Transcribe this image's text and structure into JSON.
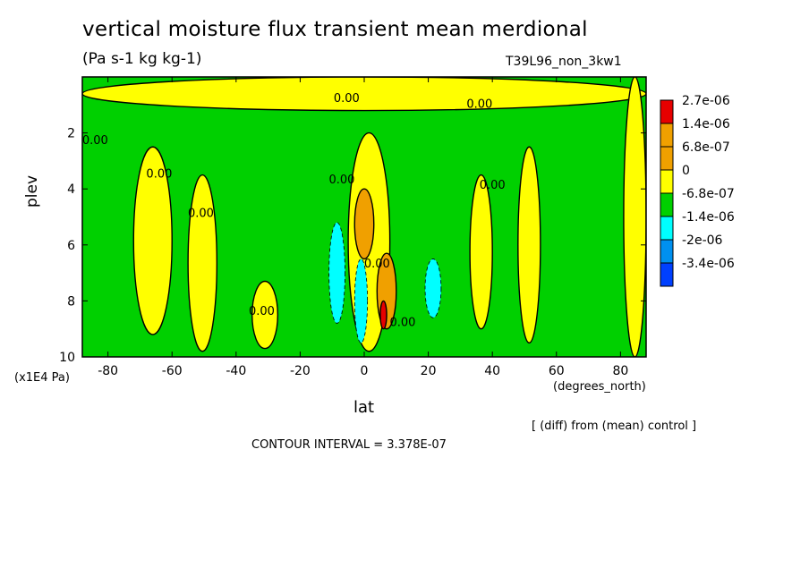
{
  "title": "vertical moisture flux transient mean merdional",
  "units": "(Pa s-1 kg kg-1)",
  "run_label": "T39L96_non_3kw1",
  "diff_note": "[ (diff) from (mean) control ]",
  "contour_interval": "CONTOUR INTERVAL = 3.378E-07",
  "colors": {
    "bin_ge_2_7e06": "#e60000",
    "bin_1_4e06": "#f0a000",
    "bin_6_8e07": "#f0a000",
    "bin_0": "#ffff00",
    "bin_neg_6_8e07": "#00d000",
    "bin_neg_1_4e06": "#00ffff",
    "bin_neg_2e06": "#0090f0",
    "bin_neg_3_4e06": "#0040ff"
  },
  "chart_data": {
    "type": "heatmap",
    "title": "vertical moisture flux transient mean merdional",
    "xlabel": "lat",
    "x_units": "(degrees_north)",
    "ylabel": "plev",
    "y_units": "(x1E4 Pa)",
    "xlim": [
      -88,
      88
    ],
    "ylim": [
      10,
      0
    ],
    "x_ticks": [
      -80,
      -60,
      -40,
      -20,
      0,
      20,
      40,
      60,
      80
    ],
    "x_tick_labels": [
      "-80",
      "-60",
      "-40",
      "-20",
      "0",
      "20",
      "40",
      "60",
      "80"
    ],
    "y_ticks": [
      2,
      4,
      6,
      8,
      10
    ],
    "y_tick_labels": [
      "2",
      "4",
      "6",
      "8",
      "10"
    ],
    "legend": {
      "placement": "right",
      "labels": [
        "2.7e-06",
        "1.4e-06",
        "6.8e-07",
        "0",
        "-6.8e-07",
        "-1.4e-06",
        "-2e-06",
        "-3.4e-06"
      ],
      "colors": [
        "#e60000",
        "#f0a000",
        "#f0a000",
        "#ffff00",
        "#00d000",
        "#00ffff",
        "#0090f0",
        "#0040ff"
      ]
    },
    "contour_labels": [
      "0.00",
      "0.00",
      "0.00",
      "0.00",
      "0.00",
      "0.00",
      "0.00",
      "0.00",
      "0.00",
      "0.00"
    ],
    "regions": [
      {
        "kind": "positive",
        "lat": [
          -88,
          88
        ],
        "plev": [
          0.0,
          1.2
        ]
      },
      {
        "kind": "positive",
        "lat": [
          -72,
          -60
        ],
        "plev": [
          2.5,
          9.2
        ]
      },
      {
        "kind": "positive",
        "lat": [
          -55,
          -46
        ],
        "plev": [
          3.5,
          9.8
        ]
      },
      {
        "kind": "positive",
        "lat": [
          -35,
          -27
        ],
        "plev": [
          7.3,
          9.7
        ]
      },
      {
        "kind": "positive",
        "lat": [
          -5,
          8
        ],
        "plev": [
          2.0,
          9.8
        ]
      },
      {
        "kind": "moderate_positive",
        "lat": [
          -3,
          3
        ],
        "plev": [
          4.0,
          6.5
        ]
      },
      {
        "kind": "moderate_positive",
        "lat": [
          4,
          10
        ],
        "plev": [
          6.3,
          9.0
        ]
      },
      {
        "kind": "strong_positive",
        "lat": [
          5,
          7
        ],
        "plev": [
          8.0,
          9.0
        ]
      },
      {
        "kind": "negative",
        "lat": [
          -11,
          -6
        ],
        "plev": [
          5.2,
          8.8
        ]
      },
      {
        "kind": "negative",
        "lat": [
          -3,
          1
        ],
        "plev": [
          6.5,
          9.5
        ]
      },
      {
        "kind": "negative",
        "lat": [
          19,
          24
        ],
        "plev": [
          6.5,
          8.6
        ]
      },
      {
        "kind": "positive",
        "lat": [
          33,
          40
        ],
        "plev": [
          3.5,
          9.0
        ]
      },
      {
        "kind": "positive",
        "lat": [
          48,
          55
        ],
        "plev": [
          2.5,
          9.5
        ]
      },
      {
        "kind": "positive",
        "lat": [
          81,
          88
        ],
        "plev": [
          0.0,
          10.0
        ]
      }
    ]
  }
}
